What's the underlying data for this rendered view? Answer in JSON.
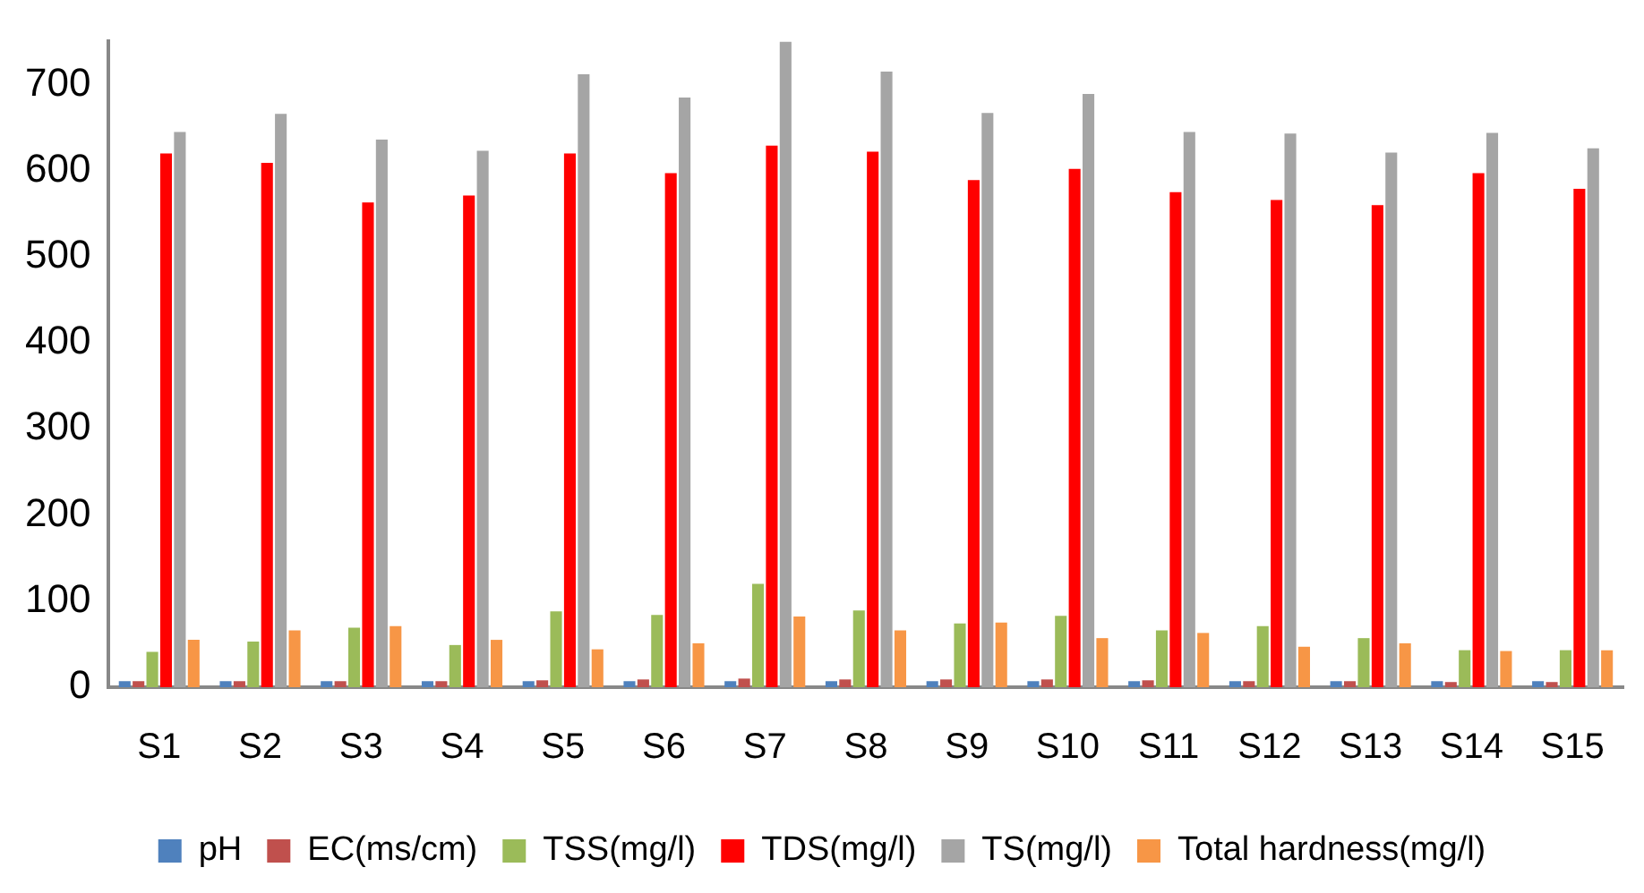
{
  "chart_data": {
    "type": "bar",
    "categories": [
      "S1",
      "S2",
      "S3",
      "S4",
      "S5",
      "S6",
      "S7",
      "S8",
      "S9",
      "S10",
      "S11",
      "S12",
      "S13",
      "S14",
      "S15"
    ],
    "series": [
      {
        "name": "pH",
        "color": "#4f81bd",
        "values": [
          7,
          7,
          7,
          7,
          7,
          7,
          7,
          7,
          7,
          7,
          7,
          7,
          7,
          7,
          7
        ]
      },
      {
        "name": "EC(ms/cm)",
        "color": "#c0504d",
        "values": [
          7,
          7,
          7,
          7,
          8,
          9,
          10,
          9,
          9,
          9,
          8,
          7,
          7,
          6,
          6
        ]
      },
      {
        "name": "TSS(mg/l)",
        "color": "#9bbb59",
        "values": [
          41,
          53,
          69,
          49,
          88,
          84,
          120,
          89,
          74,
          83,
          66,
          71,
          57,
          43,
          43
        ]
      },
      {
        "name": "TDS(mg/l)",
        "color": "#ff0000",
        "values": [
          620,
          609,
          563,
          571,
          620,
          597,
          629,
          622,
          589,
          602,
          575,
          566,
          560,
          597,
          579
        ]
      },
      {
        "name": "TS(mg/l)",
        "color": "#a5a5a5",
        "values": [
          645,
          666,
          636,
          623,
          712,
          685,
          750,
          715,
          667,
          689,
          645,
          643,
          621,
          644,
          626
        ]
      },
      {
        "name": "Total hardness(mg/l)",
        "color": "#f79646",
        "values": [
          55,
          66,
          71,
          55,
          44,
          51,
          82,
          66,
          75,
          57,
          63,
          47,
          51,
          42,
          43
        ]
      }
    ],
    "ylim": [
      0,
      750
    ],
    "yticks": [
      0,
      100,
      200,
      300,
      400,
      500,
      600,
      700
    ],
    "grid": false,
    "legend": "bottom"
  }
}
